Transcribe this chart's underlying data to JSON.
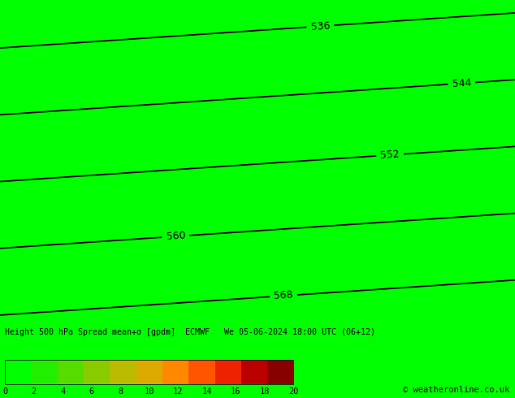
{
  "title_text": "Height 500 hPa Spread mean+σ [gpdm]  ECMWF   We 05-06-2024 18:00 UTC (06+12)",
  "colorbar_ticks": [
    0,
    2,
    4,
    6,
    8,
    10,
    12,
    14,
    16,
    18,
    20
  ],
  "colorbar_colors": [
    "#00FF00",
    "#33EE00",
    "#66DD00",
    "#99CC00",
    "#CCBB00",
    "#FFAA00",
    "#FF8800",
    "#FF6600",
    "#EE3300",
    "#CC1100",
    "#990000"
  ],
  "background_color": "#00FF00",
  "light_green_color": "#66FF33",
  "contour_color": "#000000",
  "coast_color": "#C8C8C8",
  "footer_text": "© weatheronline.co.uk",
  "contour_levels": [
    536,
    544,
    552,
    560,
    568
  ],
  "lon_min": -14,
  "lon_max": 14,
  "lat_min": 46,
  "lat_max": 63,
  "figsize": [
    6.34,
    4.9
  ],
  "dpi": 100
}
